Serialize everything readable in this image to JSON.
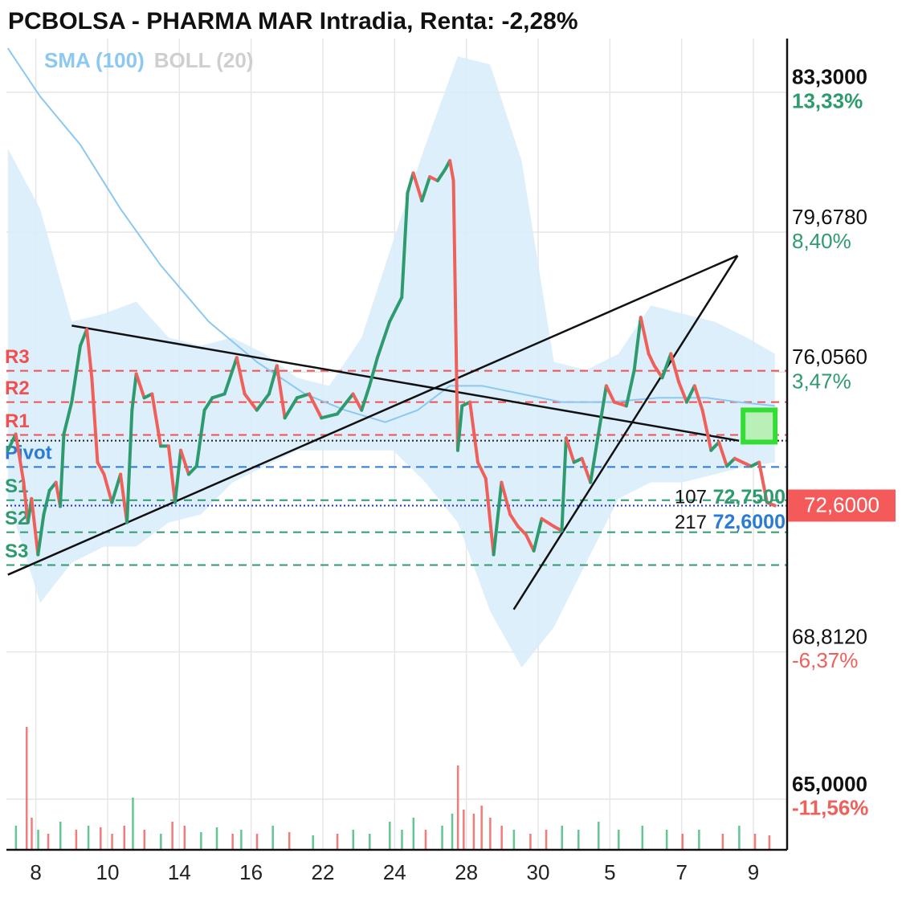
{
  "chart_data": {
    "type": "line",
    "title": "PCBOLSA - PHARMA MAR Intradia, Renta: -2,28%",
    "xlim": [
      -0.41,
      10.47
    ],
    "xticks": [
      {
        "value": 0,
        "label": "8"
      },
      {
        "value": 1,
        "label": "10"
      },
      {
        "value": 2,
        "label": "14"
      },
      {
        "value": 3,
        "label": "16"
      },
      {
        "value": 4,
        "label": "22"
      },
      {
        "value": 5,
        "label": "24"
      },
      {
        "value": 6,
        "label": "28"
      },
      {
        "value": 7,
        "label": "30"
      },
      {
        "value": 8,
        "label": "5"
      },
      {
        "value": 9,
        "label": "7"
      },
      {
        "value": 10,
        "label": "9"
      }
    ],
    "ylim": [
      63.69,
      84.69
    ],
    "yticks": [
      {
        "value": 83.3,
        "label": "83,3000"
      },
      {
        "value": 79.678,
        "label": "79,6780"
      },
      {
        "value": 76.056,
        "label": "76,0560"
      },
      {
        "value": 68.812,
        "label": "68,8120"
      },
      {
        "value": 65.0,
        "label": "65,0000"
      }
    ],
    "y2lim": [
      -13.35,
      15.22
    ],
    "y2ticks": [
      {
        "value": 13.33,
        "label": "13,33%"
      },
      {
        "value": 8.4,
        "label": "8,40%"
      },
      {
        "value": 3.47,
        "label": "3,47%"
      },
      {
        "value": -6.37,
        "label": "-6,37%"
      },
      {
        "value": -11.56,
        "label": "-11,56%"
      }
    ],
    "grid": true,
    "series": [
      {
        "color": "#2e9b6e",
        "down_color": "#f0605a",
        "x": [
          -0.39,
          -0.28,
          -0.17,
          -0.11,
          -0.06,
          0.03,
          0.11,
          0.19,
          0.28,
          0.34,
          0.39,
          0.5,
          0.62,
          0.71,
          0.78,
          0.86,
          0.95,
          1.06,
          1.18,
          1.27,
          1.34,
          1.4,
          1.51,
          1.62,
          1.74,
          1.85,
          1.94,
          2.02,
          2.13,
          2.24,
          2.35,
          2.46,
          2.63,
          2.8,
          2.91,
          3.08,
          3.25,
          3.36,
          3.47,
          3.64,
          3.81,
          3.98,
          4.2,
          4.42,
          4.54,
          4.65,
          4.76,
          4.93,
          5.1,
          5.18,
          5.26,
          5.38,
          5.49,
          5.6,
          5.71,
          5.77,
          5.82,
          5.88,
          5.94,
          6.05,
          6.16,
          6.27,
          6.38,
          6.49,
          6.61,
          6.72,
          6.83,
          6.94,
          7.05,
          7.22,
          7.33,
          7.39,
          7.5,
          7.61,
          7.73,
          7.84,
          7.95,
          8.06,
          8.23,
          8.34,
          8.43,
          8.54,
          8.62,
          8.73,
          8.85,
          8.96,
          9.07,
          9.18,
          9.29,
          9.41,
          9.52,
          9.63,
          9.74,
          9.85,
          9.97,
          10.08,
          10.19,
          10.3
        ],
        "values": [
          74.03,
          74.45,
          73.2,
          72.16,
          72.78,
          71.33,
          72.37,
          72.99,
          73.2,
          72.58,
          74.45,
          75.28,
          76.74,
          77.16,
          75.91,
          73.72,
          73.41,
          72.68,
          73.41,
          72.16,
          75.07,
          76.01,
          75.39,
          75.49,
          74.14,
          74.14,
          72.68,
          74.03,
          73.41,
          73.62,
          75.07,
          75.39,
          75.49,
          76.43,
          75.49,
          75.07,
          75.49,
          76.22,
          74.87,
          75.39,
          75.49,
          74.87,
          74.97,
          75.49,
          75.07,
          75.7,
          76.43,
          77.36,
          77.99,
          80.69,
          81.21,
          80.49,
          81.11,
          81.01,
          81.32,
          81.53,
          81.01,
          74.03,
          75.18,
          75.28,
          73.72,
          73.3,
          71.33,
          73.2,
          72.37,
          72.06,
          71.85,
          71.43,
          72.26,
          72.06,
          71.95,
          74.35,
          73.72,
          73.82,
          73.2,
          74.45,
          75.7,
          75.28,
          75.18,
          76.11,
          77.47,
          76.53,
          76.22,
          75.91,
          76.53,
          75.8,
          75.28,
          75.7,
          75.07,
          74.03,
          74.24,
          73.62,
          73.82,
          73.72,
          73.62,
          73.72,
          72.68,
          72.6
        ]
      },
      {
        "name": "SMA (100)",
        "color": "#8cc8f0",
        "x": [
          -0.39,
          0.06,
          0.62,
          1.18,
          1.74,
          2.41,
          3.08,
          3.75,
          4.31,
          4.87,
          5.32,
          5.77,
          6.22,
          6.77,
          7.33,
          8.01,
          8.68,
          9.35,
          9.8,
          10.3
        ],
        "values": [
          84.44,
          83.19,
          81.94,
          80.28,
          78.82,
          77.36,
          76.32,
          75.49,
          75.07,
          74.76,
          75.07,
          75.7,
          75.7,
          75.49,
          75.28,
          75.28,
          75.39,
          75.39,
          75.28,
          75.18
        ]
      },
      {
        "name": "BOLL (20)",
        "color": "#cfcfcf",
        "fill": "#d8ecfb",
        "x": [
          -0.39,
          0.06,
          0.5,
          0.95,
          1.4,
          1.85,
          2.3,
          2.74,
          3.19,
          3.64,
          4.09,
          4.54,
          4.98,
          5.43,
          5.88,
          6.33,
          6.77,
          7.22,
          7.67,
          8.12,
          8.57,
          9.01,
          9.46,
          9.91,
          10.3
        ],
        "upper": [
          81.84,
          80.28,
          77.36,
          77.57,
          77.88,
          76.95,
          76.74,
          76.95,
          76.53,
          75.91,
          75.7,
          76.95,
          79.45,
          81.94,
          84.23,
          84.02,
          81.53,
          76.32,
          76.11,
          76.53,
          77.78,
          77.57,
          77.36,
          76.95,
          76.53
        ],
        "lower": [
          72.78,
          70.08,
          71.12,
          71.54,
          71.54,
          72.16,
          72.37,
          73.2,
          73.62,
          74.03,
          74.03,
          74.03,
          74.03,
          73.2,
          72.16,
          69.87,
          68.41,
          69.45,
          71.12,
          72.78,
          73.2,
          73.2,
          73.41,
          73.62,
          73.72
        ]
      }
    ],
    "levels": [
      {
        "label": "R3",
        "value": 76.09,
        "color": "#f05050"
      },
      {
        "label": "R2",
        "value": 75.28,
        "color": "#f05050"
      },
      {
        "label": "R1",
        "value": 74.43,
        "color": "#f05050"
      },
      {
        "label": "Pivot",
        "value": 73.6,
        "color": "#2b7bd6"
      },
      {
        "label": "S1",
        "value": 72.74,
        "color": "#2e9b6e"
      },
      {
        "label": "S2",
        "value": 71.91,
        "color": "#2e9b6e"
      },
      {
        "label": "S3",
        "value": 71.06,
        "color": "#2e9b6e"
      }
    ],
    "reference_lines": [
      {
        "value": 74.28,
        "color": "#222222"
      },
      {
        "value": 72.6,
        "color": "#1a2fd0"
      }
    ],
    "trendlines": [
      {
        "x": [
          0.5,
          9.8
        ],
        "y": [
          77.26,
          74.28
        ]
      },
      {
        "x": [
          -0.39,
          9.78
        ],
        "y": [
          70.81,
          79.07
        ]
      },
      {
        "x": [
          6.66,
          9.78
        ],
        "y": [
          69.91,
          79.07
        ]
      }
    ],
    "marker": {
      "x": 10.08,
      "y": 74.66,
      "color": "#33dd33"
    },
    "annotations": [
      {
        "count": 107,
        "price": {
          "value": 72.75,
          "label": "72,7500"
        },
        "color": "#2e9b6e"
      },
      {
        "count": 217,
        "price": {
          "value": 72.6,
          "label": "72,6000"
        },
        "color": "#2b7bd6"
      }
    ],
    "last_price": {
      "value": 72.6,
      "label": "72,6000",
      "color": "#f55a5a"
    },
    "volume": {
      "vlim": [
        0,
        200
      ],
      "x": [
        -0.28,
        -0.13,
        -0.06,
        0.03,
        0.17,
        0.34,
        0.56,
        0.73,
        0.9,
        1.06,
        1.23,
        1.35,
        1.51,
        1.74,
        1.9,
        2.07,
        2.3,
        2.52,
        2.74,
        2.86,
        3.08,
        3.3,
        3.53,
        3.86,
        4.2,
        4.42,
        4.65,
        4.93,
        5.1,
        5.26,
        5.43,
        5.66,
        5.8,
        5.88,
        5.96,
        6.1,
        6.21,
        6.33,
        6.49,
        6.66,
        6.89,
        7.11,
        7.33,
        7.56,
        7.84,
        8.12,
        8.45,
        8.79,
        9.01,
        9.24,
        9.57,
        9.8,
        10.02,
        10.22
      ],
      "values": [
        30,
        153,
        40,
        25,
        20,
        35,
        25,
        30,
        28,
        20,
        30,
        65,
        25,
        20,
        35,
        30,
        22,
        28,
        20,
        25,
        20,
        30,
        22,
        18,
        20,
        25,
        20,
        35,
        25,
        40,
        25,
        30,
        45,
        105,
        50,
        45,
        55,
        40,
        30,
        25,
        20,
        25,
        30,
        25,
        35,
        25,
        30,
        25,
        20,
        25,
        20,
        30,
        20,
        18
      ],
      "colors": [
        "#3cb878",
        "#f05a5a",
        "#f05a5a",
        "#3cb878",
        "#f05a5a",
        "#3cb878",
        "#f05a5a",
        "#3cb878",
        "#f05a5a",
        "#f05a5a",
        "#f05a5a",
        "#3cb878",
        "#f05a5a",
        "#3cb878",
        "#f05a5a",
        "#f05a5a",
        "#3cb878",
        "#3cb878",
        "#f05a5a",
        "#3cb878",
        "#f05a5a",
        "#3cb878",
        "#f05a5a",
        "#3cb878",
        "#f05a5a",
        "#3cb878",
        "#3cb878",
        "#3cb878",
        "#3cb878",
        "#3cb878",
        "#f05a5a",
        "#3cb878",
        "#3cb878",
        "#f05a5a",
        "#f05a5a",
        "#f05a5a",
        "#f05a5a",
        "#f05a5a",
        "#f05a5a",
        "#3cb878",
        "#f05a5a",
        "#f05a5a",
        "#3cb878",
        "#3cb878",
        "#3cb878",
        "#3cb878",
        "#3cb878",
        "#3cb878",
        "#f05a5a",
        "#3cb878",
        "#f05a5a",
        "#3cb878",
        "#f05a5a",
        "#f05a5a"
      ]
    }
  }
}
